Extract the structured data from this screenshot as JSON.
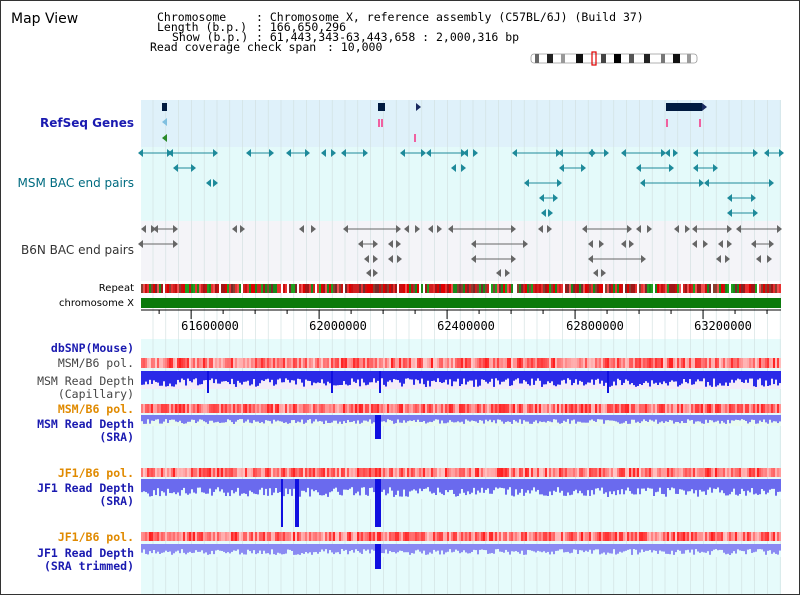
{
  "page": {
    "title": "Map View"
  },
  "info": {
    "chromosome_label": "Chromosome",
    "chromosome_value": ": Chromosome X, reference assembly (C57BL/6J) (Build 37)",
    "length_label": "Length (b.p.)",
    "length_value": ": 166,650,296",
    "show_label": "Show (b.p.)",
    "show_value": ": 61,443,343-63,443,658 : 2,000,316 bp",
    "coverage_label": "Read coverage check span",
    "coverage_value": ": 10,000"
  },
  "tracks": {
    "refseq": "RefSeq Genes",
    "msm_bac": "MSM BAC end pairs",
    "b6n_bac": "B6N BAC end pairs",
    "repeat": "Repeat",
    "chromosome": "chromosome X",
    "dbsnp": "dbSNP(Mouse)",
    "msm_b6_pol_1": "MSM/B6 pol.",
    "msm_depth_cap_1": "MSM Read Depth",
    "msm_depth_cap_2": "(Capillary)",
    "msm_b6_pol_2": "MSM/B6 pol.",
    "msm_depth_sra_1": "MSM Read Depth",
    "msm_depth_sra_2": "(SRA)",
    "jf1_b6_pol_1": "JF1/B6 pol.",
    "jf1_depth_sra_1": "JF1 Read Depth",
    "jf1_depth_sra_2": "(SRA)",
    "jf1_b6_pol_2": "JF1/B6 pol.",
    "jf1_depth_trim_1": "JF1 Read Depth",
    "jf1_depth_trim_2": "(SRA trimmed)"
  },
  "axis": {
    "ticks": [
      "61600000",
      "62000000",
      "62400000",
      "62800000",
      "63200000"
    ],
    "tick_values": [
      61600000,
      62000000,
      62400000,
      62800000,
      63200000
    ],
    "range": [
      61443343,
      63443658
    ]
  },
  "colors": {
    "refseq_bg": "#dff1fa",
    "msm_bac_bg": "#e4fafa",
    "b6n_bac_bg": "#f4f4f8",
    "depth_bg": "#e6fbfb",
    "depth_bar": "#2424f0",
    "chromosome": "#0b7a0b",
    "label_blue": "#1a1ab0",
    "label_orange": "#e08a00",
    "label_teal": "#006b80"
  }
}
